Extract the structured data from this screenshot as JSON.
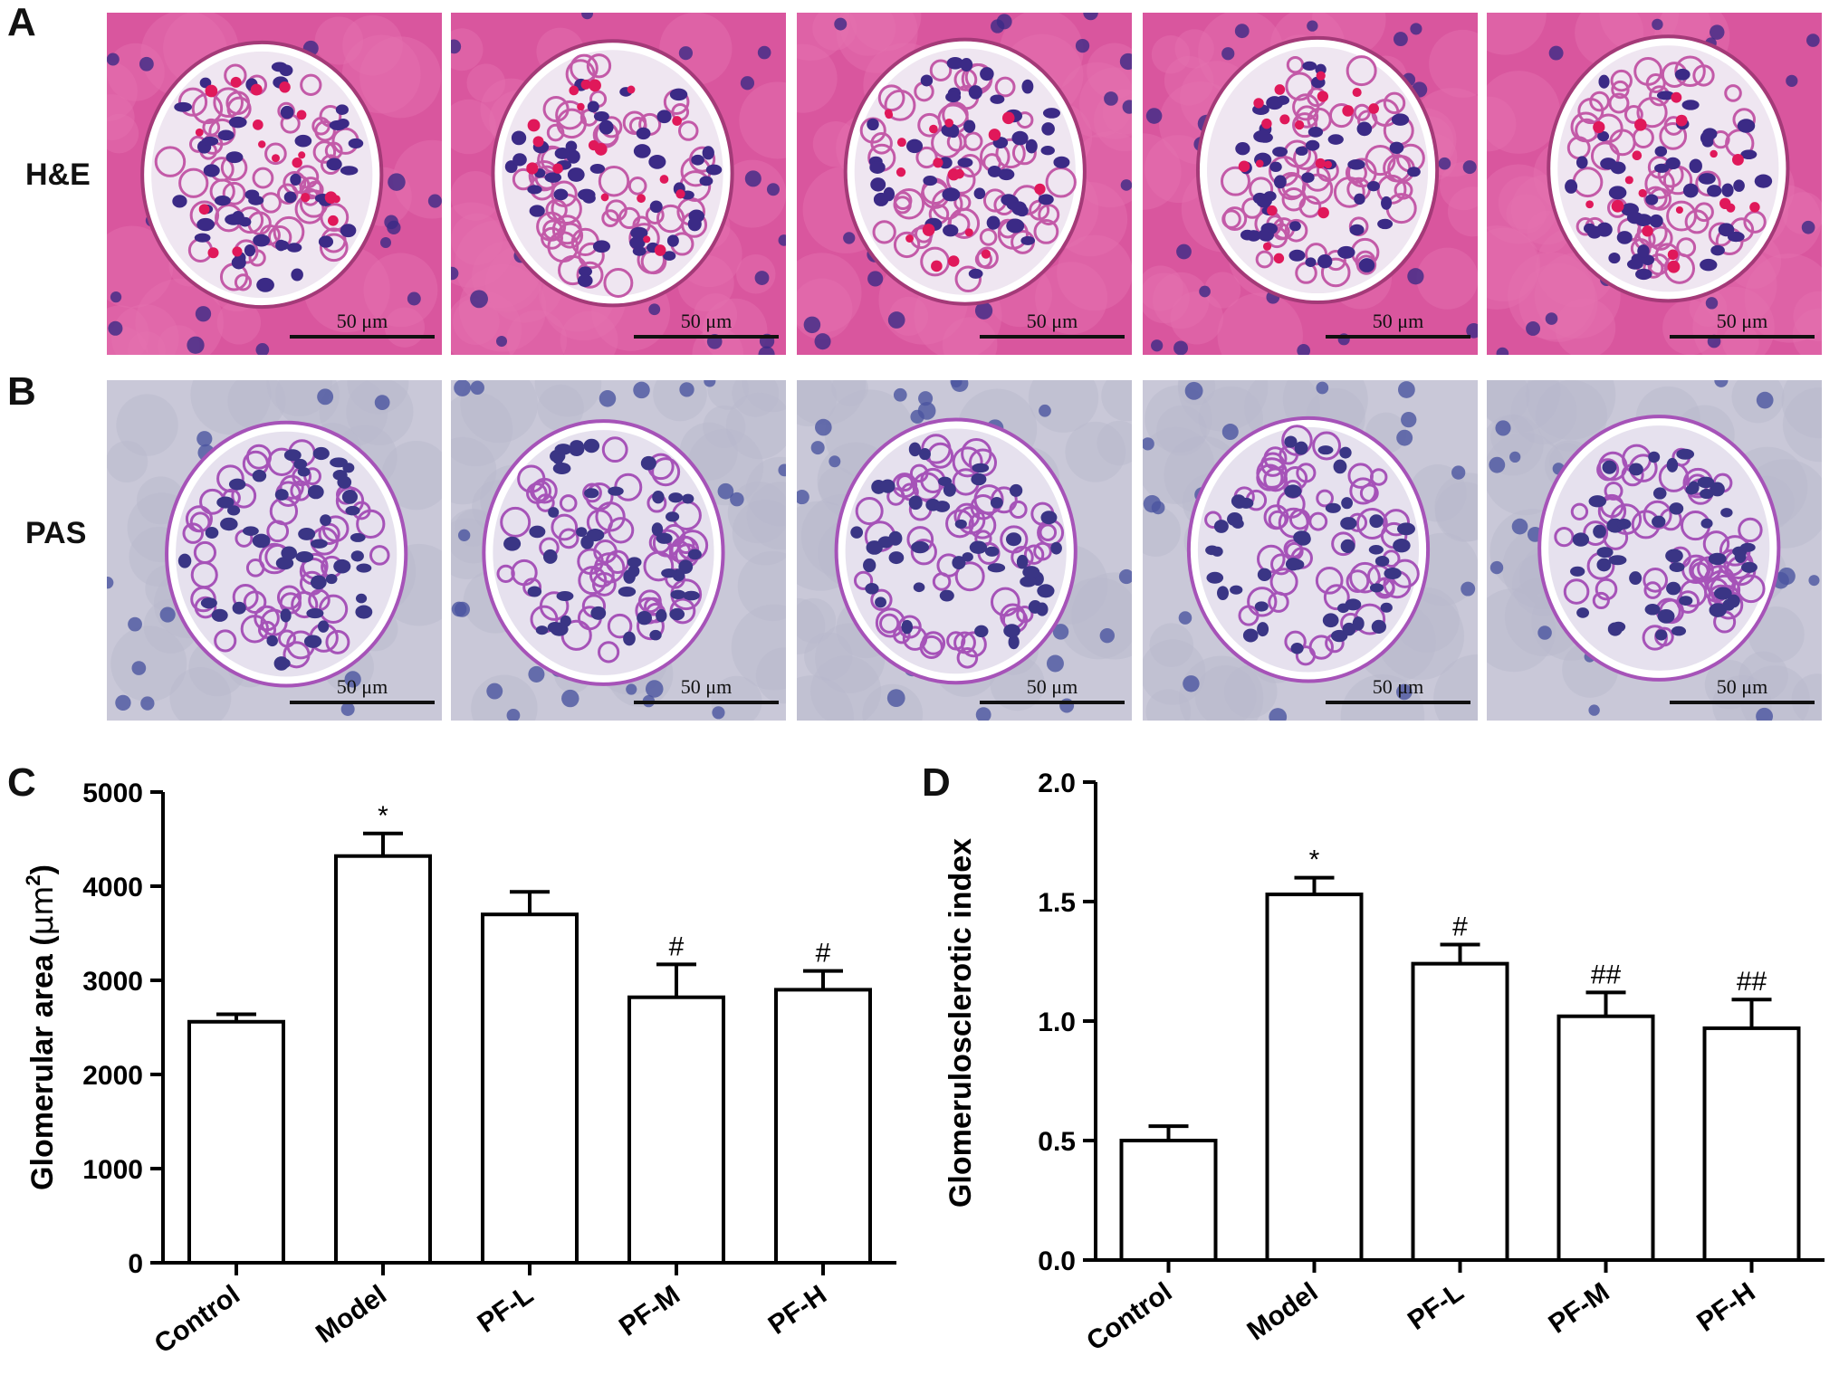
{
  "panels": [
    {
      "letter": "A",
      "stain": "H&E"
    },
    {
      "letter": "B",
      "stain": "PAS"
    },
    {
      "letter": "C"
    },
    {
      "letter": "D"
    }
  ],
  "scale_bar_label": "50 μm",
  "colors": {
    "he_background": "#d9569e",
    "he_glomerulus": "#efe6f1",
    "he_nuclei": "#3b2a86",
    "he_rbc": "#e0185a",
    "pas_background": "#c9c8d8",
    "pas_glomerulus": "#e6e1ee",
    "pas_matrix": "#a653b8",
    "pas_nuclei": "#3a3585",
    "bar_fill": "#ffffff",
    "bar_stroke": "#000000"
  },
  "chart_data": [
    {
      "panel": "C",
      "type": "bar",
      "categories": [
        "Control",
        "Model",
        "PF-L",
        "PF-M",
        "PF-H"
      ],
      "values": [
        2560,
        4320,
        3700,
        2820,
        2900
      ],
      "errors": [
        80,
        240,
        240,
        350,
        200
      ],
      "annotations": [
        "",
        "*",
        "",
        "#",
        "#"
      ],
      "ylabel_prefix": "Glomerular area (",
      "ylabel_unit": "μm",
      "ylabel_sup": "2",
      "ylabel_suffix": ")",
      "ylim": [
        0,
        5000
      ],
      "yticks": [
        "0",
        "1000",
        "2000",
        "3000",
        "4000",
        "5000"
      ],
      "ytick_values": [
        0,
        1000,
        2000,
        3000,
        4000,
        5000
      ]
    },
    {
      "panel": "D",
      "type": "bar",
      "categories": [
        "Control",
        "Model",
        "PF-L",
        "PF-M",
        "PF-H"
      ],
      "values": [
        0.5,
        1.53,
        1.24,
        1.02,
        0.97
      ],
      "errors": [
        0.06,
        0.07,
        0.08,
        0.1,
        0.12
      ],
      "annotations": [
        "",
        "*",
        "#",
        "##",
        "##"
      ],
      "ylabel": "Glomerulosclerotic index",
      "ylim": [
        0,
        2.0
      ],
      "yticks": [
        "0.0",
        "0.5",
        "1.0",
        "1.5",
        "2.0"
      ],
      "ytick_values": [
        0,
        0.5,
        1.0,
        1.5,
        2.0
      ]
    }
  ]
}
